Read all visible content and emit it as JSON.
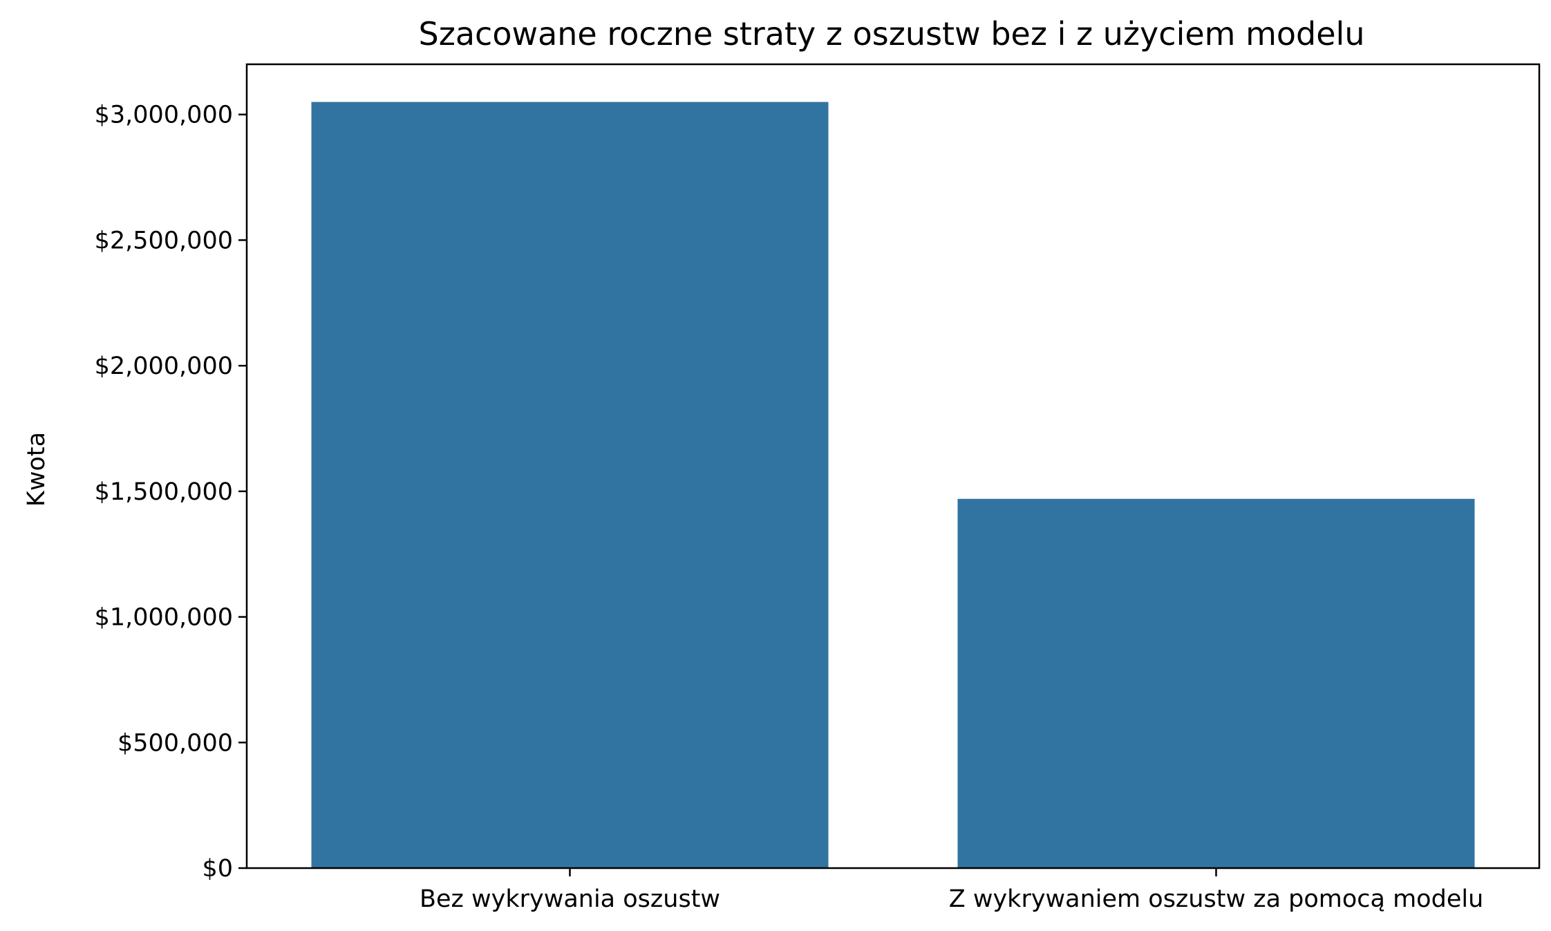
{
  "chart_data": {
    "type": "bar",
    "title": "Szacowane roczne straty z oszustw bez i z użyciem modelu",
    "xlabel": "",
    "ylabel": "Kwota",
    "categories": [
      "Bez wykrywania oszustw",
      "Z wykrywaniem oszustw za pomocą modelu"
    ],
    "values": [
      3050000,
      1470000
    ],
    "ylim": [
      0,
      3200000
    ],
    "yticks": [
      0,
      500000,
      1000000,
      1500000,
      2000000,
      2500000,
      3000000
    ],
    "ytick_labels": [
      "$0",
      "$500,000",
      "$1,000,000",
      "$1,500,000",
      "$2,000,000",
      "$2,500,000",
      "$3,000,000"
    ],
    "bar_color": "#3274a1",
    "grid": false,
    "legend": "none"
  }
}
